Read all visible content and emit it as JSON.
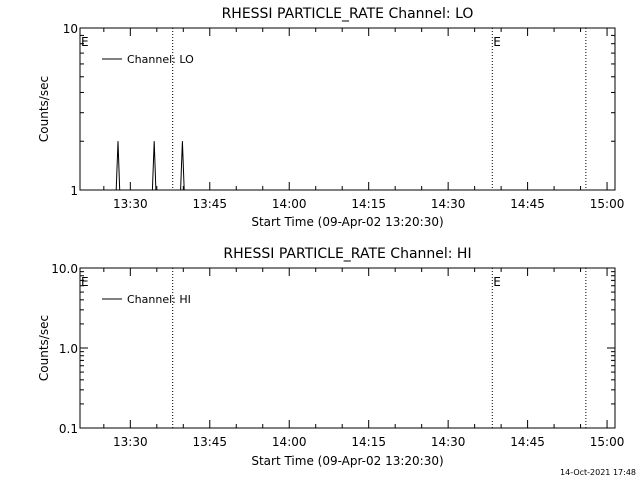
{
  "chart_data": [
    {
      "type": "line",
      "title": "RHESSI PARTICLE_RATE Channel: LO",
      "xlabel": "Start Time (09-Apr-02 13:20:30)",
      "ylabel": "Counts/sec",
      "yscale": "log",
      "ylim": [
        1,
        10
      ],
      "xlim": [
        "13:20:30",
        "15:01:30"
      ],
      "yticks": [
        {
          "value": 1,
          "label": "1"
        },
        {
          "value": 10,
          "label": "10"
        }
      ],
      "xticks": [
        {
          "time": "13:30",
          "label": "13:30"
        },
        {
          "time": "13:45",
          "label": "13:45"
        },
        {
          "time": "14:00",
          "label": "14:00"
        },
        {
          "time": "14:15",
          "label": "14:15"
        },
        {
          "time": "14:30",
          "label": "14:30"
        },
        {
          "time": "14:45",
          "label": "14:45"
        },
        {
          "time": "15:00",
          "label": "15:00"
        }
      ],
      "series": [
        {
          "name": "Channel: LO",
          "points": [
            {
              "time": "13:27:20",
              "value": 1
            },
            {
              "time": "13:27:40",
              "value": 2
            },
            {
              "time": "13:28:00",
              "value": 1
            },
            {
              "time": "13:34:10",
              "value": 1
            },
            {
              "time": "13:34:30",
              "value": 2
            },
            {
              "time": "13:34:50",
              "value": 1
            },
            {
              "time": "13:39:30",
              "value": 1
            },
            {
              "time": "13:39:50",
              "value": 2
            },
            {
              "time": "13:40:10",
              "value": 1
            }
          ]
        }
      ],
      "event_lines": [
        {
          "time": "13:38:00",
          "label": ""
        },
        {
          "time": "14:38:20",
          "label": "E"
        },
        {
          "time": "14:56:00",
          "label": ""
        }
      ],
      "corner_marker": "E",
      "legend": {
        "label": "Channel: LO",
        "position": "top-left"
      }
    },
    {
      "type": "line",
      "title": "RHESSI PARTICLE_RATE Channel: HI",
      "xlabel": "Start Time (09-Apr-02 13:20:30)",
      "ylabel": "Counts/sec",
      "yscale": "log",
      "ylim": [
        0.1,
        10
      ],
      "xlim": [
        "13:20:30",
        "15:01:30"
      ],
      "yticks": [
        {
          "value": 0.1,
          "label": "0.1"
        },
        {
          "value": 1,
          "label": "1.0"
        },
        {
          "value": 10,
          "label": "10.0"
        }
      ],
      "xticks": [
        {
          "time": "13:30",
          "label": "13:30"
        },
        {
          "time": "13:45",
          "label": "13:45"
        },
        {
          "time": "14:00",
          "label": "14:00"
        },
        {
          "time": "14:15",
          "label": "14:15"
        },
        {
          "time": "14:30",
          "label": "14:30"
        },
        {
          "time": "14:45",
          "label": "14:45"
        },
        {
          "time": "15:00",
          "label": "15:00"
        }
      ],
      "series": [
        {
          "name": "Channel: HI",
          "points": []
        }
      ],
      "event_lines": [
        {
          "time": "13:38:00",
          "label": ""
        },
        {
          "time": "14:38:20",
          "label": "E"
        },
        {
          "time": "14:56:00",
          "label": ""
        }
      ],
      "corner_marker": "E",
      "legend": {
        "label": "Channel: HI",
        "position": "top-left"
      }
    }
  ],
  "footer": {
    "timestamp": "14-Oct-2021 17:48"
  }
}
